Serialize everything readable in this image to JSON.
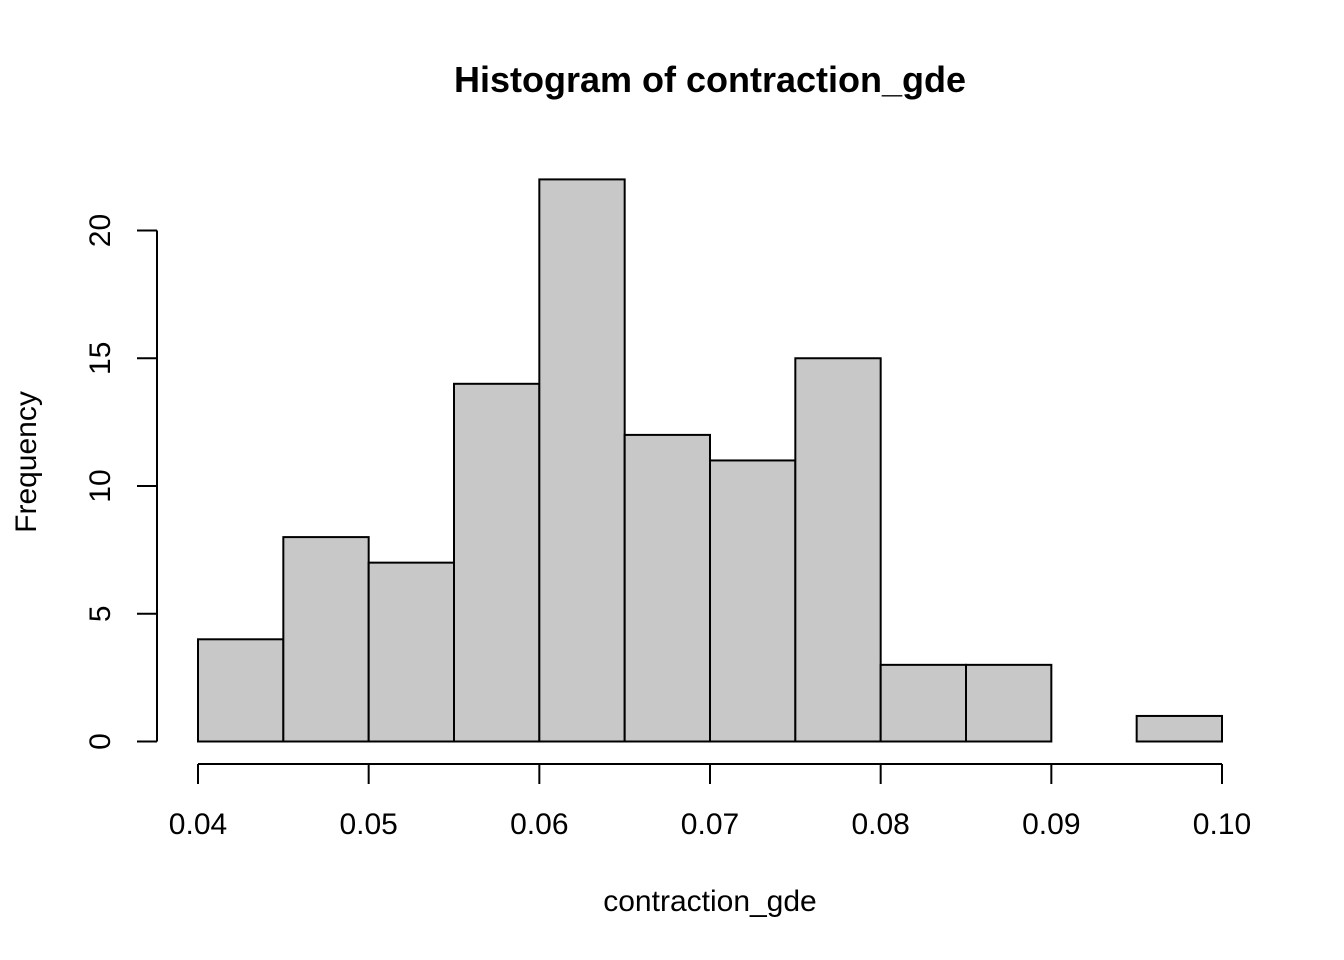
{
  "chart_data": {
    "type": "bar",
    "title": "Histogram of contraction_gde",
    "xlabel": "contraction_gde",
    "ylabel": "Frequency",
    "bin_edges": [
      0.04,
      0.045,
      0.05,
      0.055,
      0.06,
      0.065,
      0.07,
      0.075,
      0.08,
      0.085,
      0.09,
      0.095,
      0.1
    ],
    "values": [
      4,
      8,
      7,
      14,
      22,
      12,
      11,
      15,
      3,
      3,
      0,
      1
    ],
    "xlim": [
      0.04,
      0.1
    ],
    "ylim": [
      0,
      22
    ],
    "x_ticks": [
      "0.04",
      "0.05",
      "0.06",
      "0.07",
      "0.08",
      "0.09",
      "0.10"
    ],
    "x_tick_values": [
      0.04,
      0.05,
      0.06,
      0.07,
      0.08,
      0.09,
      0.1
    ],
    "y_ticks": [
      "0",
      "5",
      "10",
      "15",
      "20"
    ],
    "y_tick_values": [
      0,
      5,
      10,
      15,
      20
    ],
    "bar_color": "#c8c8c8",
    "edge_color": "#000000",
    "grid": false,
    "legend": "none"
  }
}
